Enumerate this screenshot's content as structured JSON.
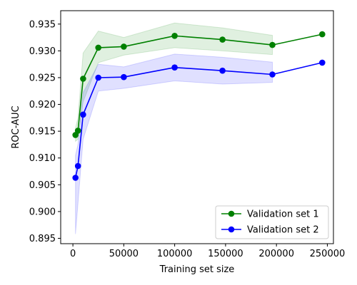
{
  "chart_data": {
    "type": "line",
    "title": "",
    "xlabel": "Training set size",
    "ylabel": "ROC-AUC",
    "xlim": [
      -12000,
      256000
    ],
    "ylim": [
      0.894,
      0.9375
    ],
    "x_ticks": [
      0,
      50000,
      100000,
      150000,
      200000,
      250000
    ],
    "x_tick_labels": [
      "0",
      "50000",
      "100000",
      "150000",
      "200000",
      "250000"
    ],
    "y_ticks": [
      0.895,
      0.9,
      0.905,
      0.91,
      0.915,
      0.92,
      0.925,
      0.93,
      0.935
    ],
    "y_tick_labels": [
      "0.895",
      "0.900",
      "0.905",
      "0.910",
      "0.915",
      "0.920",
      "0.925",
      "0.930",
      "0.935"
    ],
    "grid": false,
    "legend_position": "lower-right",
    "series": [
      {
        "name": "Validation set 1",
        "color": "#008000",
        "x": [
          2500,
          5000,
          10000,
          25000,
          50000,
          100000,
          147000,
          196000,
          245000
        ],
        "values": [
          0.9143,
          0.9151,
          0.9248,
          0.9306,
          0.9308,
          0.9328,
          0.9321,
          0.9311,
          0.9331
        ],
        "band_upper": [
          0.9156,
          0.9175,
          0.9296,
          0.9337,
          0.9325,
          0.9352,
          0.9343,
          0.9329,
          null
        ],
        "band_lower": [
          0.9131,
          0.9135,
          0.9205,
          0.9278,
          0.9292,
          0.9306,
          0.93,
          0.9293,
          null
        ]
      },
      {
        "name": "Validation set 2",
        "color": "#0000ff",
        "x": [
          2500,
          5000,
          10000,
          25000,
          50000,
          100000,
          147000,
          196000,
          245000
        ],
        "values": [
          0.9063,
          0.9085,
          0.9181,
          0.925,
          0.9251,
          0.9269,
          0.9263,
          0.9256,
          0.9278
        ],
        "band_upper": [
          0.9105,
          0.9125,
          0.9222,
          0.9275,
          0.927,
          0.9294,
          0.9288,
          0.9279,
          null
        ],
        "band_lower": [
          0.8958,
          0.9015,
          0.9135,
          0.9225,
          0.923,
          0.9244,
          0.9238,
          0.9241,
          null
        ]
      }
    ]
  }
}
